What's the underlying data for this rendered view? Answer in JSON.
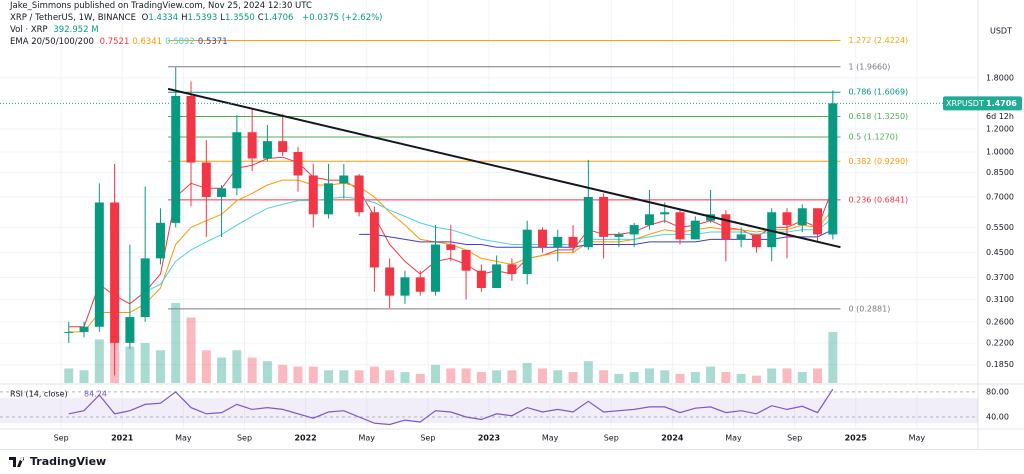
{
  "header": {
    "publisher": "Jake_Simmons published on TradingView.com, Nov 25, 2024 12:30 UTC",
    "footer": "TradingView"
  },
  "chart_data": {
    "type": "candlestick",
    "title": "XRP / TetherUS, 1W, BINANCE",
    "ohlc_legend": [
      {
        "label": "O",
        "value": "1.4334"
      },
      {
        "label": "H",
        "value": "1.5393"
      },
      {
        "label": "L",
        "value": "1.3550"
      },
      {
        "label": "C",
        "value": "1.4706"
      }
    ],
    "change": "+0.0375 (+2.62%)",
    "volume_legend": {
      "label": "Vol · XRP",
      "value": "392.952 M"
    },
    "ema_legend": {
      "label": "EMA 20/50/100/200",
      "values": [
        "0.7521",
        "0.6341",
        "0.5892",
        "0.5371"
      ]
    },
    "axis_unit": "USDT",
    "x": [
      "2020-09",
      "2020-10",
      "2020-11",
      "2020-12",
      "2021-01",
      "2021-02",
      "2021-03",
      "2021-04",
      "2021-05",
      "2021-06",
      "2021-07",
      "2021-08",
      "2021-09",
      "2021-10",
      "2021-11",
      "2021-12",
      "2022-01",
      "2022-02",
      "2022-03",
      "2022-04",
      "2022-05",
      "2022-06",
      "2022-07",
      "2022-08",
      "2022-09",
      "2022-10",
      "2022-11",
      "2022-12",
      "2023-01",
      "2023-02",
      "2023-03",
      "2023-04",
      "2023-05",
      "2023-06",
      "2023-07",
      "2023-08",
      "2023-09",
      "2023-10",
      "2023-11",
      "2023-12",
      "2024-01",
      "2024-02",
      "2024-03",
      "2024-04",
      "2024-05",
      "2024-06",
      "2024-07",
      "2024-08",
      "2024-09",
      "2024-10",
      "2024-11"
    ],
    "open": [
      0.24,
      0.24,
      0.25,
      0.67,
      0.22,
      0.27,
      0.43,
      0.57,
      1.56,
      0.92,
      0.7,
      0.75,
      1.17,
      0.95,
      1.09,
      1.0,
      0.83,
      0.61,
      0.78,
      0.83,
      0.62,
      0.4,
      0.32,
      0.37,
      0.33,
      0.48,
      0.46,
      0.39,
      0.34,
      0.41,
      0.38,
      0.54,
      0.47,
      0.51,
      0.47,
      0.7,
      0.51,
      0.52,
      0.56,
      0.61,
      0.62,
      0.5,
      0.58,
      0.61,
      0.5,
      0.52,
      0.47,
      0.62,
      0.56,
      0.64,
      0.52
    ],
    "high": [
      0.26,
      0.26,
      0.78,
      0.91,
      0.48,
      0.76,
      0.64,
      1.96,
      1.75,
      1.1,
      0.77,
      1.34,
      1.41,
      1.24,
      1.35,
      1.04,
      0.91,
      0.91,
      0.91,
      0.84,
      0.65,
      0.43,
      0.39,
      0.39,
      0.56,
      0.56,
      0.46,
      0.41,
      0.44,
      0.43,
      0.58,
      0.55,
      0.54,
      0.56,
      0.94,
      0.72,
      0.53,
      0.57,
      0.74,
      0.67,
      0.64,
      0.6,
      0.74,
      0.63,
      0.55,
      0.52,
      0.64,
      0.64,
      0.66,
      0.64,
      1.63
    ],
    "low": [
      0.22,
      0.23,
      0.24,
      0.17,
      0.21,
      0.26,
      0.41,
      0.55,
      0.65,
      0.51,
      0.51,
      0.71,
      0.86,
      0.93,
      0.97,
      0.73,
      0.55,
      0.59,
      0.69,
      0.6,
      0.33,
      0.29,
      0.3,
      0.32,
      0.32,
      0.42,
      0.31,
      0.33,
      0.34,
      0.36,
      0.35,
      0.45,
      0.42,
      0.45,
      0.46,
      0.43,
      0.47,
      0.47,
      0.54,
      0.57,
      0.48,
      0.5,
      0.57,
      0.42,
      0.47,
      0.45,
      0.42,
      0.43,
      0.53,
      0.49,
      0.5
    ],
    "close": [
      0.24,
      0.25,
      0.67,
      0.22,
      0.27,
      0.43,
      0.57,
      1.56,
      0.92,
      0.7,
      0.75,
      1.17,
      0.95,
      1.09,
      1.0,
      0.83,
      0.61,
      0.78,
      0.83,
      0.62,
      0.4,
      0.32,
      0.37,
      0.33,
      0.48,
      0.46,
      0.39,
      0.34,
      0.41,
      0.38,
      0.54,
      0.47,
      0.51,
      0.47,
      0.7,
      0.51,
      0.52,
      0.56,
      0.61,
      0.62,
      0.5,
      0.58,
      0.61,
      0.5,
      0.52,
      0.47,
      0.62,
      0.56,
      0.64,
      0.52,
      1.4706
    ],
    "volume": [
      4000,
      3500,
      12000,
      14000,
      10000,
      11000,
      9000,
      22000,
      18000,
      9000,
      7000,
      9000,
      7000,
      6000,
      5000,
      4500,
      4500,
      3500,
      3500,
      3500,
      4500,
      3500,
      3000,
      2500,
      5000,
      4000,
      4000,
      3000,
      3500,
      3500,
      5500,
      4000,
      3500,
      3000,
      6000,
      3500,
      2500,
      3000,
      4000,
      3500,
      2500,
      3000,
      4500,
      3000,
      2500,
      2000,
      4000,
      4000,
      3000,
      4000,
      14000
    ],
    "up_color": "#089981",
    "down_color": "#f23645",
    "ema": [
      {
        "color": "#f23645",
        "values": [
          0.25,
          0.25,
          0.35,
          0.32,
          0.3,
          0.33,
          0.38,
          0.7,
          0.78,
          0.75,
          0.75,
          0.88,
          0.9,
          0.95,
          0.96,
          0.92,
          0.82,
          0.8,
          0.8,
          0.74,
          0.6,
          0.48,
          0.42,
          0.38,
          0.42,
          0.43,
          0.41,
          0.38,
          0.39,
          0.38,
          0.43,
          0.44,
          0.46,
          0.46,
          0.54,
          0.52,
          0.52,
          0.53,
          0.56,
          0.58,
          0.55,
          0.56,
          0.58,
          0.55,
          0.54,
          0.51,
          0.55,
          0.55,
          0.58,
          0.55,
          0.75
        ]
      },
      {
        "color": "#ff9800",
        "values": [
          0.24,
          0.24,
          0.28,
          0.28,
          0.28,
          0.3,
          0.34,
          0.48,
          0.55,
          0.58,
          0.61,
          0.68,
          0.72,
          0.77,
          0.8,
          0.8,
          0.77,
          0.77,
          0.78,
          0.76,
          0.7,
          0.62,
          0.56,
          0.5,
          0.49,
          0.48,
          0.46,
          0.43,
          0.42,
          0.41,
          0.43,
          0.44,
          0.45,
          0.45,
          0.49,
          0.49,
          0.49,
          0.5,
          0.52,
          0.54,
          0.53,
          0.54,
          0.55,
          0.54,
          0.54,
          0.53,
          0.54,
          0.54,
          0.56,
          0.55,
          0.63
        ]
      },
      {
        "color": "#4dd0e1",
        "values": [
          null,
          null,
          null,
          null,
          null,
          0.33,
          0.35,
          0.42,
          0.46,
          0.49,
          0.52,
          0.56,
          0.6,
          0.64,
          0.66,
          0.68,
          0.68,
          0.69,
          0.7,
          0.69,
          0.67,
          0.63,
          0.6,
          0.57,
          0.55,
          0.54,
          0.52,
          0.5,
          0.49,
          0.48,
          0.48,
          0.48,
          0.48,
          0.48,
          0.5,
          0.5,
          0.5,
          0.5,
          0.51,
          0.52,
          0.52,
          0.52,
          0.53,
          0.53,
          0.53,
          0.52,
          0.53,
          0.53,
          0.54,
          0.54,
          0.59
        ]
      },
      {
        "color": "#3f3fbf",
        "values": [
          null,
          null,
          null,
          null,
          null,
          null,
          null,
          null,
          null,
          null,
          null,
          null,
          null,
          null,
          null,
          null,
          null,
          null,
          null,
          0.52,
          0.52,
          0.51,
          0.5,
          0.49,
          0.49,
          0.49,
          0.48,
          0.48,
          0.47,
          0.47,
          0.47,
          0.47,
          0.47,
          0.47,
          0.48,
          0.48,
          0.48,
          0.48,
          0.49,
          0.49,
          0.49,
          0.49,
          0.5,
          0.5,
          0.5,
          0.5,
          0.5,
          0.51,
          0.51,
          0.51,
          0.54
        ]
      }
    ],
    "log_scale": true,
    "ylim": [
      0.16,
      2.85
    ],
    "yticks": [
      {
        "value": 1.8,
        "label": "1.8000"
      },
      {
        "value": 1.2,
        "label": "1.2000"
      },
      {
        "value": 1,
        "label": "1.0000"
      },
      {
        "value": 0.85,
        "label": "0.8500"
      },
      {
        "value": 0.7,
        "label": "0.7000"
      },
      {
        "value": 0.55,
        "label": "0.5500"
      },
      {
        "value": 0.45,
        "label": "0.4500"
      },
      {
        "value": 0.37,
        "label": "0.3700"
      },
      {
        "value": 0.31,
        "label": "0.3100"
      },
      {
        "value": 0.26,
        "label": "0.2600"
      },
      {
        "value": 0.22,
        "label": "0.2200"
      },
      {
        "value": 0.185,
        "label": "0.1850"
      }
    ],
    "xlim": [
      "2020-05",
      "2025-09"
    ],
    "xticks": [
      {
        "value": "2020-09",
        "label": "Sep"
      },
      {
        "value": "2021-01",
        "label": "2021"
      },
      {
        "value": "2021-05",
        "label": "May"
      },
      {
        "value": "2021-09",
        "label": "Sep"
      },
      {
        "value": "2022-01",
        "label": "2022"
      },
      {
        "value": "2022-05",
        "label": "May"
      },
      {
        "value": "2022-09",
        "label": "Sep"
      },
      {
        "value": "2023-01",
        "label": "2023"
      },
      {
        "value": "2023-05",
        "label": "May"
      },
      {
        "value": "2023-09",
        "label": "Sep"
      },
      {
        "value": "2024-01",
        "label": "2024"
      },
      {
        "value": "2024-05",
        "label": "May"
      },
      {
        "value": "2024-09",
        "label": "Sep"
      },
      {
        "value": "2025-01",
        "label": "2025"
      },
      {
        "value": "2025-05",
        "label": "May"
      }
    ],
    "fib_x": [
      "2021-04",
      "2024-12"
    ],
    "fib_levels": [
      {
        "label": "1.272 (2.4224)",
        "value": 2.4224,
        "color": "#f7a600"
      },
      {
        "label": "1 (1.9660)",
        "value": 1.966,
        "color": "#787b86"
      },
      {
        "label": "0.786 (1.6069)",
        "value": 1.6069,
        "color": "#009688"
      },
      {
        "label": "0.618 (1.3250)",
        "value": 1.325,
        "color": "#4caf50"
      },
      {
        "label": "0.5 (1.1270)",
        "value": 1.127,
        "color": "#4caf50"
      },
      {
        "label": "0.382 (0.9290)",
        "value": 0.929,
        "color": "#ff9800"
      },
      {
        "label": "0.236 (0.6841)",
        "value": 0.6841,
        "color": "#f23645"
      },
      {
        "label": "0 (0.2881)",
        "value": 0.2881,
        "color": "#787b86"
      }
    ],
    "trendline": {
      "x": [
        "2021-04",
        "2024-12"
      ],
      "values": [
        1.65,
        0.47
      ],
      "color": "#131722"
    },
    "last_price": {
      "symbol": "XRPUSDT",
      "value": 1.4706,
      "countdown": "6d 12h",
      "color": "#22ab94"
    },
    "rsi": {
      "label": "RSI (14, close)",
      "value": 84.24,
      "color": "#7e57c2",
      "ylim": [
        24,
        91
      ],
      "yticks": [
        {
          "value": 80,
          "label": "80.00"
        },
        {
          "value": 40,
          "label": "40.00"
        }
      ],
      "band": [
        30,
        70
      ],
      "values": [
        45,
        50,
        75,
        45,
        50,
        60,
        62,
        80,
        55,
        45,
        47,
        60,
        52,
        55,
        52,
        45,
        38,
        48,
        50,
        40,
        30,
        28,
        35,
        32,
        50,
        48,
        40,
        36,
        45,
        42,
        55,
        48,
        52,
        48,
        65,
        48,
        50,
        52,
        56,
        56,
        47,
        54,
        56,
        47,
        50,
        45,
        58,
        52,
        57,
        47,
        84.24
      ]
    },
    "grid": true
  }
}
